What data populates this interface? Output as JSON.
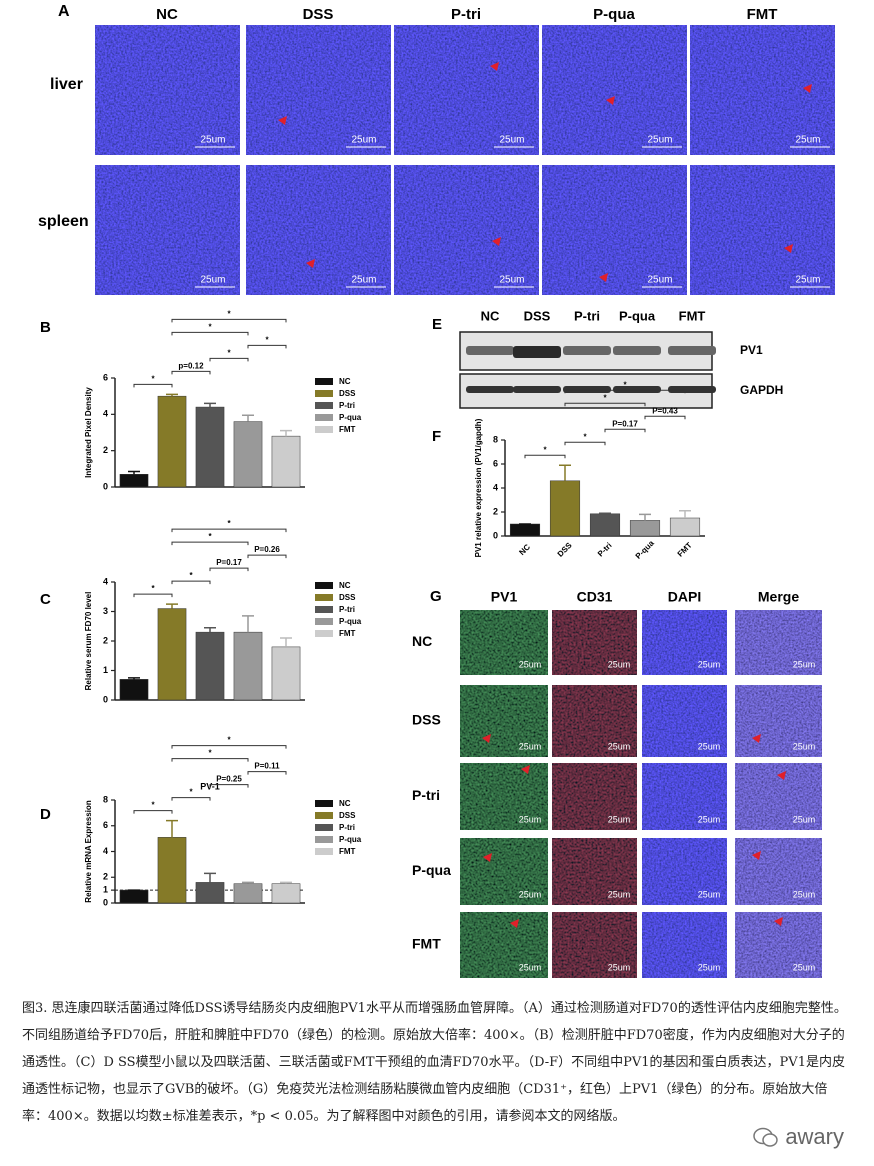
{
  "panel_a": {
    "label": "A",
    "columns": [
      "NC",
      "DSS",
      "P-tri",
      "P-qua",
      "FMT"
    ],
    "rows": [
      "liver",
      "spleen"
    ],
    "scale_label": "25um"
  },
  "chart_data": [
    {
      "type": "bar",
      "panel_label": "B",
      "y_label": "Integrated Pixel Density",
      "categories": [
        "NC",
        "DSS",
        "P-tri",
        "P-qua",
        "FMT"
      ],
      "values": [
        0.7,
        5.0,
        4.4,
        3.6,
        2.8
      ],
      "errors": [
        0.15,
        0.1,
        0.2,
        0.35,
        0.3
      ],
      "colors": [
        "#111111",
        "#857a28",
        "#555555",
        "#999999",
        "#cccccc"
      ],
      "ylim": [
        0,
        6
      ],
      "yticks": [
        0,
        2,
        4,
        6
      ],
      "legend": "right",
      "annotations": [
        {
          "label": "*",
          "between": [
            "NC",
            "DSS"
          ]
        },
        {
          "label": "p=0.12",
          "between": [
            "DSS",
            "P-tri"
          ]
        },
        {
          "label": "*",
          "between": [
            "P-tri",
            "P-qua"
          ]
        },
        {
          "label": "*",
          "between": [
            "P-qua",
            "FMT"
          ]
        },
        {
          "label": "*",
          "between": [
            "DSS",
            "P-qua"
          ]
        },
        {
          "label": "*",
          "between": [
            "DSS",
            "FMT"
          ]
        }
      ]
    },
    {
      "type": "bar",
      "panel_label": "C",
      "y_label": "Relative serum FD70 level",
      "categories": [
        "NC",
        "DSS",
        "P-tri",
        "P-qua",
        "FMT"
      ],
      "values": [
        0.7,
        3.1,
        2.3,
        2.3,
        1.8
      ],
      "errors": [
        0.05,
        0.15,
        0.15,
        0.55,
        0.3
      ],
      "colors": [
        "#111111",
        "#857a28",
        "#555555",
        "#999999",
        "#cccccc"
      ],
      "ylim": [
        0,
        4
      ],
      "yticks": [
        0,
        1,
        2,
        3,
        4
      ],
      "legend": "right",
      "annotations": [
        {
          "label": "*",
          "between": [
            "NC",
            "DSS"
          ]
        },
        {
          "label": "*",
          "between": [
            "DSS",
            "P-tri"
          ]
        },
        {
          "label": "P=0.17",
          "between": [
            "P-tri",
            "P-qua"
          ]
        },
        {
          "label": "P=0.26",
          "between": [
            "P-qua",
            "FMT"
          ]
        },
        {
          "label": "*",
          "between": [
            "DSS",
            "P-qua"
          ]
        },
        {
          "label": "*",
          "between": [
            "DSS",
            "FMT"
          ]
        }
      ]
    },
    {
      "type": "bar",
      "panel_label": "D",
      "title": "PV-1",
      "y_label": "Relative mRNA Expression",
      "categories": [
        "NC",
        "DSS",
        "P-tri",
        "P-qua",
        "FMT"
      ],
      "values": [
        1,
        5.1,
        1.6,
        1.5,
        1.5
      ],
      "errors": [
        0,
        1.3,
        0.7,
        0.1,
        0.1
      ],
      "colors": [
        "#111111",
        "#857a28",
        "#555555",
        "#999999",
        "#cccccc"
      ],
      "ylim": [
        0,
        8
      ],
      "yticks": [
        0,
        1,
        2,
        4,
        6,
        8
      ],
      "reference_line": 1,
      "legend": "right",
      "annotations": [
        {
          "label": "*",
          "between": [
            "NC",
            "DSS"
          ]
        },
        {
          "label": "*",
          "between": [
            "DSS",
            "P-tri"
          ]
        },
        {
          "label": "P=0.25",
          "between": [
            "P-tri",
            "P-qua"
          ]
        },
        {
          "label": "P=0.11",
          "between": [
            "P-qua",
            "FMT"
          ]
        },
        {
          "label": "*",
          "between": [
            "DSS",
            "P-qua"
          ]
        },
        {
          "label": "*",
          "between": [
            "DSS",
            "FMT"
          ]
        }
      ]
    },
    {
      "type": "bar",
      "panel_label": "F",
      "y_label": "PV1 relative expression (PV1/gapdh)",
      "categories": [
        "NC",
        "DSS",
        "P-tri",
        "P-qua",
        "FMT"
      ],
      "values": [
        1,
        4.6,
        1.85,
        1.3,
        1.5
      ],
      "errors": [
        0,
        1.3,
        0.05,
        0.5,
        0.6
      ],
      "colors": [
        "#111111",
        "#857a28",
        "#555555",
        "#999999",
        "#cccccc"
      ],
      "ylim": [
        0,
        8
      ],
      "yticks": [
        0,
        2,
        4,
        6,
        8
      ],
      "annotations": [
        {
          "label": "*",
          "between": [
            "NC",
            "DSS"
          ]
        },
        {
          "label": "*",
          "between": [
            "DSS",
            "P-tri"
          ]
        },
        {
          "label": "P=0.17",
          "between": [
            "P-tri",
            "P-qua"
          ]
        },
        {
          "label": "P=0.43",
          "between": [
            "P-qua",
            "FMT"
          ]
        },
        {
          "label": "*",
          "between": [
            "DSS",
            "P-qua"
          ]
        },
        {
          "label": "*",
          "between": [
            "DSS",
            "FMT"
          ]
        }
      ]
    }
  ],
  "panel_e": {
    "label": "E",
    "columns": [
      "NC",
      "DSS",
      "P-tri",
      "P-qua",
      "FMT"
    ],
    "bands": [
      "PV1",
      "GAPDH"
    ]
  },
  "panel_g": {
    "label": "G",
    "columns": [
      "PV1",
      "CD31",
      "DAPI",
      "Merge"
    ],
    "rows": [
      "NC",
      "DSS",
      "P-tri",
      "P-qua",
      "FMT"
    ],
    "scale_label": "25um"
  },
  "caption": "图3. 思连康四联活菌通过降低DSS诱导结肠炎内皮细胞PV1水平从而增强肠血管屏障。（A）通过检测肠道对FD70的透性评估内皮细胞完整性。不同组肠道给予FD70后，肝脏和脾脏中FD70（绿色）的检测。原始放大倍率：400×。（B）检测肝脏中FD70密度，作为内皮细胞对大分子的通透性。（C）D SS模型小鼠以及四联活菌、三联活菌或FMT干预组的血清FD70水平。（D-F）不同组中PV1的基因和蛋白质表达，PV1是内皮通透性标记物，也显示了GVB的破坏。（G）免疫荧光法检测结肠粘膜微血管内皮细胞（CD31⁺，红色）上PV1（绿色）的分布。原始放大倍率：400×。数据以均数±标准差表示，*p < 0.05。为了解释图中对颜色的引用，请参阅本文的网络版。",
  "watermark": "awary"
}
